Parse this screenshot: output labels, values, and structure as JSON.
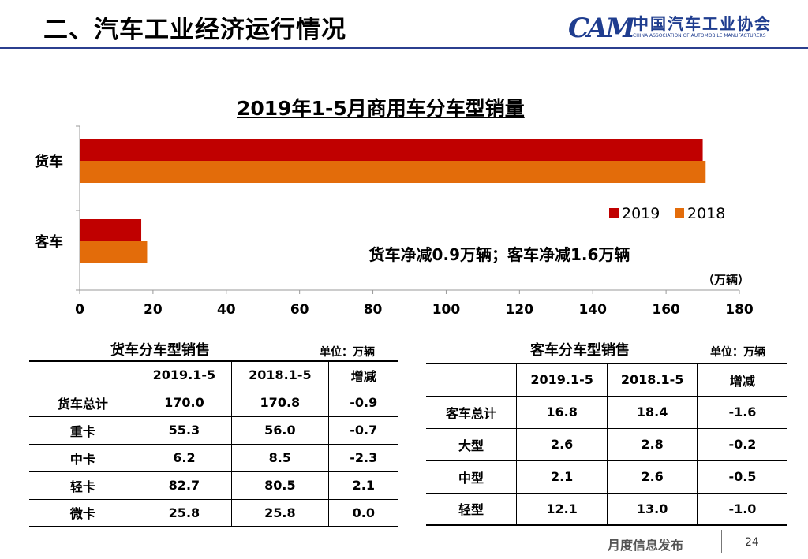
{
  "header": {
    "title": "二、汽车工业经济运行情况",
    "logo_mark": "CAM",
    "logo_cn": "中国汽车工业协会",
    "logo_en": "CHINA ASSOCIATION OF AUTOMOBILE MANUFACTURERS"
  },
  "chart_data": {
    "type": "bar",
    "orientation": "horizontal",
    "title": "2019年1-5月商用车分车型销量",
    "categories": [
      "货车",
      "客车"
    ],
    "series": [
      {
        "name": "2019",
        "values": [
          170.0,
          16.8
        ],
        "color": "#c00000"
      },
      {
        "name": "2018",
        "values": [
          170.8,
          18.4
        ],
        "color": "#e36c0a"
      }
    ],
    "xlim": [
      0,
      180
    ],
    "xticks": [
      0,
      20,
      40,
      60,
      80,
      100,
      120,
      140,
      160,
      180
    ],
    "unit": "（万辆）",
    "annotation": "货车净减0.9万辆；客车净减1.6万辆",
    "legend_position": "right"
  },
  "truck_table": {
    "title": "货车分车型销售",
    "unit": "单位：万辆",
    "headers": [
      "",
      "2019.1-5",
      "2018.1-5",
      "增减"
    ],
    "rows": [
      [
        "货车总计",
        "170.0",
        "170.8",
        "-0.9"
      ],
      [
        "重卡",
        "55.3",
        "56.0",
        "-0.7"
      ],
      [
        "中卡",
        "6.2",
        "8.5",
        "-2.3"
      ],
      [
        "轻卡",
        "82.7",
        "80.5",
        "2.1"
      ],
      [
        "微卡",
        "25.8",
        "25.8",
        "0.0"
      ]
    ]
  },
  "bus_table": {
    "title": "客车分车型销售",
    "unit": "单位：万辆",
    "headers": [
      "",
      "2019.1-5",
      "2018.1-5",
      "增减"
    ],
    "rows": [
      [
        "客车总计",
        "16.8",
        "18.4",
        "-1.6"
      ],
      [
        "大型",
        "2.6",
        "2.8",
        "-0.2"
      ],
      [
        "中型",
        "2.1",
        "2.6",
        "-0.5"
      ],
      [
        "轻型",
        "12.1",
        "13.0",
        "-1.0"
      ]
    ]
  },
  "footer": {
    "label": "月度信息发布",
    "page": "24"
  }
}
